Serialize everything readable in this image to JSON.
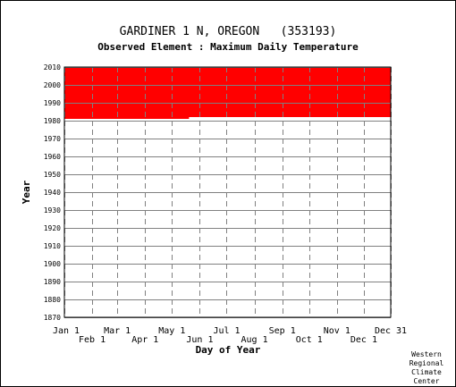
{
  "chart_data": {
    "type": "heatmap",
    "title": "GARDINER 1 N, OREGON   (353193)",
    "subtitle": "Observed Element : Maximum Daily Temperature",
    "xlabel": "Day of Year",
    "ylabel": "Year",
    "ylim": [
      1870,
      2010
    ],
    "xlim": [
      1,
      365
    ],
    "y_ticks": [
      1870,
      1880,
      1890,
      1900,
      1910,
      1920,
      1930,
      1940,
      1950,
      1960,
      1970,
      1980,
      1990,
      2000,
      2010
    ],
    "x_ticks_top": [
      {
        "label": "Jan 1",
        "day": 1
      },
      {
        "label": "Mar 1",
        "day": 60
      },
      {
        "label": "May 1",
        "day": 121
      },
      {
        "label": "Jul 1",
        "day": 182
      },
      {
        "label": "Sep 1",
        "day": 244
      },
      {
        "label": "Nov 1",
        "day": 305
      },
      {
        "label": "Dec 31",
        "day": 365
      }
    ],
    "x_ticks_bottom": [
      {
        "label": "Feb 1",
        "day": 32
      },
      {
        "label": "Apr 1",
        "day": 91
      },
      {
        "label": "Jun 1",
        "day": 152
      },
      {
        "label": "Aug 1",
        "day": 213
      },
      {
        "label": "Oct 1",
        "day": 274
      },
      {
        "label": "Dec 1",
        "day": 335
      }
    ],
    "color": "#ff0000",
    "observed_blocks": [
      {
        "day_start": 1,
        "day_end": 365,
        "year_start": 1982,
        "year_end": 2010
      },
      {
        "day_start": 1,
        "day_end": 140,
        "year_start": 1981,
        "year_end": 1982
      }
    ],
    "grid": true
  },
  "credit": [
    "Western",
    "Regional",
    "Climate",
    "Center"
  ]
}
